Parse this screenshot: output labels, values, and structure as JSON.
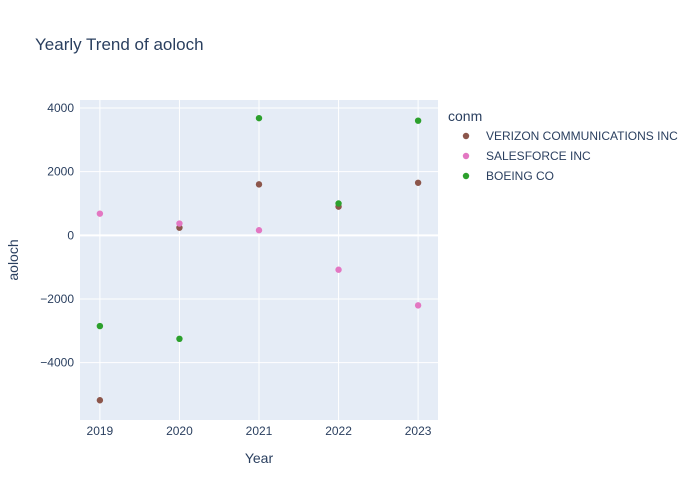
{
  "chart_data": {
    "type": "scatter",
    "title": "Yearly Trend of aoloch",
    "xlabel": "Year",
    "ylabel": "aoloch",
    "x": [
      2019,
      2020,
      2021,
      2022,
      2023
    ],
    "xlim": [
      2018.75,
      2023.25
    ],
    "ylim": [
      -5800,
      4250
    ],
    "yticks": [
      -4000,
      -2000,
      0,
      2000,
      4000
    ],
    "ytick_labels": [
      "−4000",
      "−2000",
      "0",
      "2000",
      "4000"
    ],
    "grid": true,
    "legend": {
      "title": "conm",
      "placement": "right"
    },
    "series": [
      {
        "name": "VERIZON COMMUNICATIONS INC",
        "color": "#8c564b",
        "values": [
          -5180,
          240,
          1600,
          900,
          1650
        ]
      },
      {
        "name": "SALESFORCE INC",
        "color": "#e377c2",
        "values": [
          680,
          370,
          160,
          -1080,
          -2200
        ]
      },
      {
        "name": "BOEING CO",
        "color": "#2ca02c",
        "values": [
          -2850,
          -3250,
          3680,
          1000,
          3600
        ]
      }
    ]
  }
}
